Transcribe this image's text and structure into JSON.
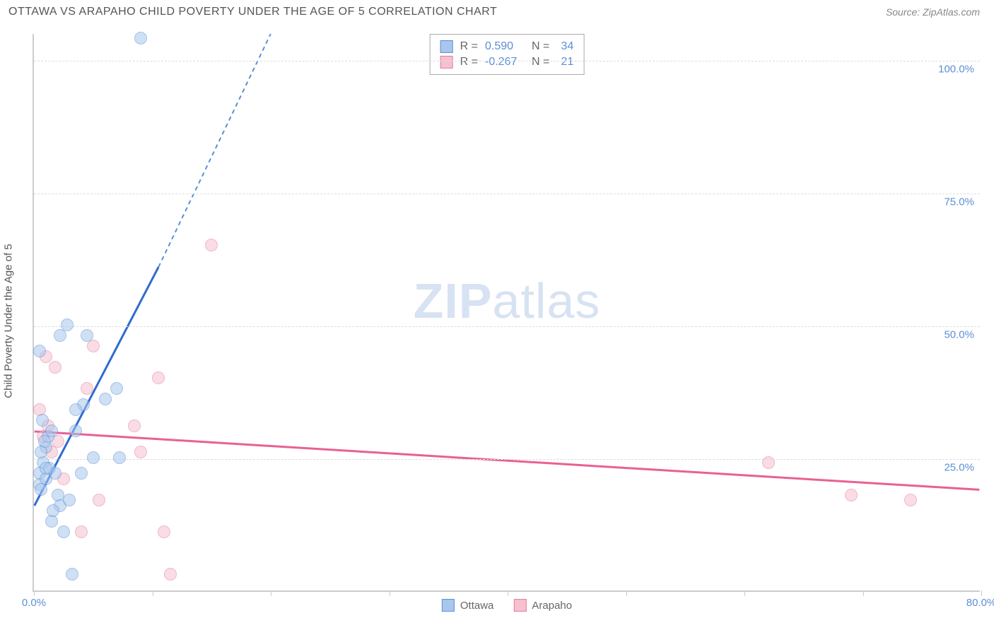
{
  "header": {
    "title": "OTTAWA VS ARAPAHO CHILD POVERTY UNDER THE AGE OF 5 CORRELATION CHART",
    "source": "Source: ZipAtlas.com"
  },
  "chart": {
    "type": "scatter",
    "ylabel": "Child Poverty Under the Age of 5",
    "xlim": [
      0,
      80
    ],
    "ylim": [
      0,
      105
    ],
    "xtick_positions": [
      0,
      10,
      20,
      30,
      40,
      50,
      60,
      70,
      80
    ],
    "xtick_labels": {
      "0": "0.0%",
      "80": "80.0%"
    },
    "ytick_positions": [
      25,
      50,
      75,
      100
    ],
    "ytick_labels": {
      "25": "25.0%",
      "50": "50.0%",
      "75": "75.0%",
      "100": "100.0%"
    },
    "background_color": "#ffffff",
    "grid_color": "#dddddd",
    "axis_color": "#cccccc",
    "tick_label_color": "#5b8fd6",
    "label_color": "#555555",
    "label_fontsize": 15,
    "marker_radius": 9,
    "marker_opacity": 0.55,
    "series": {
      "ottawa": {
        "label": "Ottawa",
        "fill_color": "#a9c7ec",
        "stroke_color": "#5b8fd6",
        "R_label": "R =",
        "R": "0.590",
        "N_label": "N =",
        "N": "34",
        "trend": {
          "x1": 0,
          "y1": 16,
          "x2": 10.5,
          "y2": 61,
          "dash_x2": 20,
          "dash_y2": 105,
          "width": 3
        },
        "points": [
          {
            "x": 0.5,
            "y": 22
          },
          {
            "x": 0.5,
            "y": 20
          },
          {
            "x": 0.8,
            "y": 24
          },
          {
            "x": 1.0,
            "y": 21
          },
          {
            "x": 1.0,
            "y": 27
          },
          {
            "x": 1.2,
            "y": 29
          },
          {
            "x": 1.3,
            "y": 23
          },
          {
            "x": 1.5,
            "y": 30
          },
          {
            "x": 0.7,
            "y": 32
          },
          {
            "x": 0.9,
            "y": 28
          },
          {
            "x": 0.6,
            "y": 19
          },
          {
            "x": 1.8,
            "y": 22
          },
          {
            "x": 2.0,
            "y": 18
          },
          {
            "x": 2.2,
            "y": 16
          },
          {
            "x": 1.5,
            "y": 13
          },
          {
            "x": 2.5,
            "y": 11
          },
          {
            "x": 3.2,
            "y": 3
          },
          {
            "x": 3.0,
            "y": 17
          },
          {
            "x": 4.0,
            "y": 22
          },
          {
            "x": 3.5,
            "y": 30
          },
          {
            "x": 4.2,
            "y": 35
          },
          {
            "x": 5.0,
            "y": 25
          },
          {
            "x": 6.0,
            "y": 36
          },
          {
            "x": 7.0,
            "y": 38
          },
          {
            "x": 7.2,
            "y": 25
          },
          {
            "x": 3.5,
            "y": 34
          },
          {
            "x": 4.5,
            "y": 48
          },
          {
            "x": 2.2,
            "y": 48
          },
          {
            "x": 2.8,
            "y": 50
          },
          {
            "x": 0.5,
            "y": 45
          },
          {
            "x": 9.0,
            "y": 104
          },
          {
            "x": 1.6,
            "y": 15
          },
          {
            "x": 0.6,
            "y": 26
          },
          {
            "x": 1.0,
            "y": 23
          }
        ]
      },
      "arapaho": {
        "label": "Arapaho",
        "fill_color": "#f5c1cf",
        "stroke_color": "#e87ba0",
        "R_label": "R =",
        "R": "-0.267",
        "N_label": "N =",
        "N": "21",
        "trend": {
          "x1": 0,
          "y1": 30,
          "x2": 80,
          "y2": 19,
          "width": 3
        },
        "points": [
          {
            "x": 0.5,
            "y": 34
          },
          {
            "x": 1.0,
            "y": 44
          },
          {
            "x": 1.5,
            "y": 26
          },
          {
            "x": 1.8,
            "y": 42
          },
          {
            "x": 2.0,
            "y": 28
          },
          {
            "x": 2.5,
            "y": 21
          },
          {
            "x": 5.0,
            "y": 46
          },
          {
            "x": 4.5,
            "y": 38
          },
          {
            "x": 5.5,
            "y": 17
          },
          {
            "x": 4.0,
            "y": 11
          },
          {
            "x": 8.5,
            "y": 31
          },
          {
            "x": 9.0,
            "y": 26
          },
          {
            "x": 10.5,
            "y": 40
          },
          {
            "x": 11.0,
            "y": 11
          },
          {
            "x": 11.5,
            "y": 3
          },
          {
            "x": 15.0,
            "y": 65
          },
          {
            "x": 62.0,
            "y": 24
          },
          {
            "x": 69.0,
            "y": 18
          },
          {
            "x": 74.0,
            "y": 17
          },
          {
            "x": 1.2,
            "y": 31
          },
          {
            "x": 0.8,
            "y": 29
          }
        ]
      }
    },
    "watermark": {
      "text_bold": "ZIP",
      "text_rest": "atlas"
    }
  }
}
